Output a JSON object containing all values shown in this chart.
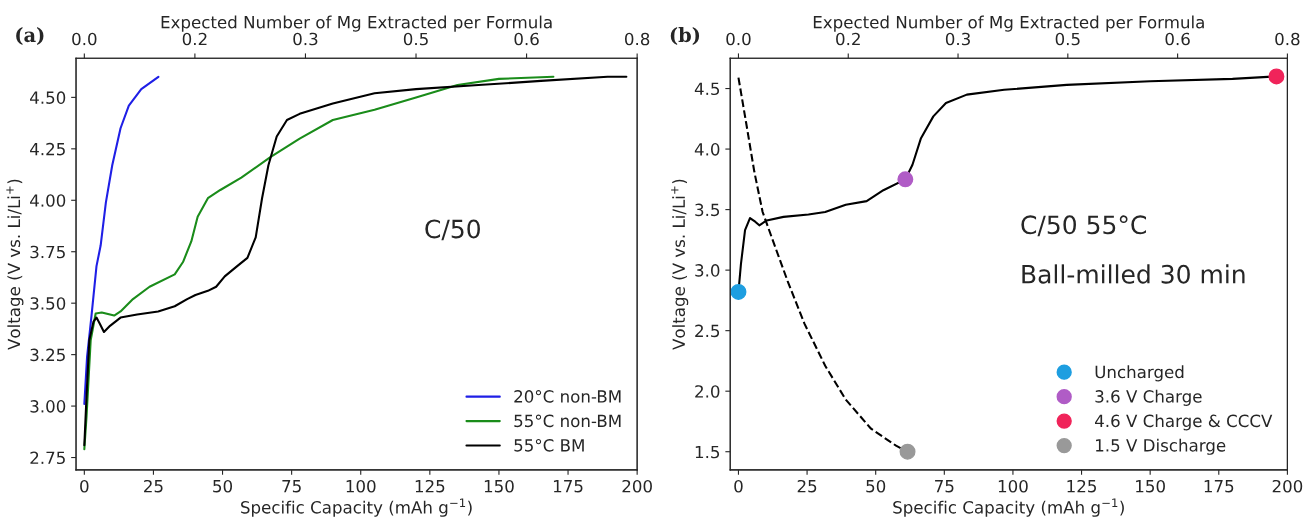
{
  "chart_data": [
    {
      "type": "line",
      "title": "(a)",
      "xlabel": "Specific Capacity (mAh g$^{−1}$)",
      "ylabel": "Voltage (V vs. Li/Li$^{+}$)",
      "x2label": "Expected Number of Mg Extracted per Formula",
      "xlim": [
        -3,
        200
      ],
      "xticks": [
        0,
        25,
        50,
        75,
        100,
        125,
        150,
        175,
        200
      ],
      "x2lim": [
        -0.012,
        0.8
      ],
      "x2ticks": [
        {
          "value": 0,
          "label": "0.0"
        },
        {
          "value": 0.16,
          "label": "0.2"
        },
        {
          "value": 0.32,
          "label": "0.3"
        },
        {
          "value": 0.48,
          "label": "0.5"
        },
        {
          "value": 0.64,
          "label": "0.6"
        },
        {
          "value": 0.8,
          "label": "0.8"
        }
      ],
      "ylim": [
        2.69,
        4.69
      ],
      "yticks": [
        {
          "value": 2.75,
          "label": "2.75"
        },
        {
          "value": 3.0,
          "label": "3.00"
        },
        {
          "value": 3.25,
          "label": "3.25"
        },
        {
          "value": 3.5,
          "label": "3.50"
        },
        {
          "value": 3.75,
          "label": "3.75"
        },
        {
          "value": 4.0,
          "label": "4.00"
        },
        {
          "value": 4.25,
          "label": "4.25"
        },
        {
          "value": 4.5,
          "label": "4.50"
        }
      ],
      "legend": "bottom right",
      "grid": false,
      "annotations": [
        "C/50"
      ],
      "series": [
        {
          "name": "20°C non-BM",
          "color": "#1f1fe6",
          "x": [
            0,
            1,
            2.6,
            4.4,
            5.9,
            7.8,
            10.1,
            13.1,
            16.1,
            20.6,
            26.8
          ],
          "values": [
            3.01,
            3.24,
            3.44,
            3.68,
            3.78,
            3.99,
            4.17,
            4.35,
            4.46,
            4.54,
            4.6
          ]
        },
        {
          "name": "55°C non-BM",
          "color": "#1a8c1a",
          "x": [
            0,
            0.8,
            2.3,
            4.1,
            6.3,
            10.8,
            13.1,
            17.6,
            23.6,
            32.7,
            35.7,
            38.7,
            41,
            44.7,
            49.2,
            56.8,
            67.3,
            77.9,
            89.9,
            105,
            120,
            135,
            150,
            169.7
          ],
          "values": [
            2.79,
            2.95,
            3.32,
            3.45,
            3.455,
            3.44,
            3.46,
            3.52,
            3.58,
            3.64,
            3.7,
            3.8,
            3.92,
            4.01,
            4.05,
            4.11,
            4.21,
            4.3,
            4.39,
            4.44,
            4.5,
            4.56,
            4.59,
            4.6
          ]
        },
        {
          "name": "55°C BM",
          "color": "#000000",
          "x": [
            0,
            0.8,
            1.8,
            3.3,
            4.4,
            5.6,
            7.1,
            9.3,
            13.1,
            19.1,
            26.7,
            32.7,
            37.2,
            40.2,
            44.7,
            47.7,
            50.8,
            55.3,
            59,
            62,
            64.3,
            66.6,
            69.6,
            73.3,
            77.9,
            89.9,
            105,
            120,
            142.6,
            165.2,
            189.3,
            196.1
          ],
          "values": [
            2.81,
            3.05,
            3.32,
            3.41,
            3.43,
            3.4,
            3.36,
            3.39,
            3.43,
            3.445,
            3.46,
            3.485,
            3.52,
            3.54,
            3.56,
            3.58,
            3.63,
            3.68,
            3.72,
            3.82,
            4.01,
            4.17,
            4.31,
            4.39,
            4.42,
            4.47,
            4.52,
            4.54,
            4.56,
            4.58,
            4.6,
            4.6
          ]
        }
      ]
    },
    {
      "type": "line",
      "title": "(b)",
      "xlabel": "Specific Capacity (mAh g$^{−1}$)",
      "ylabel": "Voltage (V vs. Li/Li$^{+}$)",
      "x2label": "Expected Number of Mg Extracted per Formula",
      "xlim": [
        -3,
        200
      ],
      "xticks": [
        0,
        25,
        50,
        75,
        100,
        125,
        150,
        175,
        200
      ],
      "x2lim": [
        -0.012,
        0.8
      ],
      "x2ticks": [
        {
          "value": 0,
          "label": "0.0"
        },
        {
          "value": 0.16,
          "label": "0.2"
        },
        {
          "value": 0.32,
          "label": "0.3"
        },
        {
          "value": 0.48,
          "label": "0.5"
        },
        {
          "value": 0.64,
          "label": "0.6"
        },
        {
          "value": 0.8,
          "label": "0.8"
        }
      ],
      "ylim": [
        1.35,
        4.75
      ],
      "yticks": [
        1.5,
        {
          "value": 2,
          "label": "2.0"
        },
        2.5,
        {
          "value": 3,
          "label": "3.0"
        },
        3.5,
        {
          "value": 4,
          "label": "4.0"
        },
        4.5
      ],
      "legend": "bottom right",
      "grid": false,
      "annotations": [
        "C/50 55°C",
        "Ball-milled 30 min"
      ],
      "series": [
        {
          "type": "line",
          "color": "#000000",
          "line_style": "solid",
          "x": [
            0,
            0.9,
            2.4,
            4.2,
            6.1,
            7.6,
            10.3,
            16.4,
            25.5,
            31.6,
            39.1,
            46.7,
            52.8,
            60.8,
            63.4,
            66.5,
            71,
            75.6,
            83.2,
            96.8,
            119.6,
            150,
            180,
            195.9
          ],
          "values": [
            2.82,
            3.05,
            3.33,
            3.43,
            3.4,
            3.37,
            3.41,
            3.44,
            3.46,
            3.48,
            3.54,
            3.57,
            3.66,
            3.75,
            3.87,
            4.09,
            4.27,
            4.38,
            4.45,
            4.49,
            4.53,
            4.56,
            4.58,
            4.6
          ]
        },
        {
          "type": "line",
          "color": "#000000",
          "line_style": "dashed",
          "x": [
            0,
            2.7,
            5.8,
            8.8,
            13.4,
            17.9,
            24,
            31.6,
            39.1,
            48.3,
            57.4,
            61.6
          ],
          "values": [
            4.59,
            4.23,
            3.81,
            3.48,
            3.19,
            2.91,
            2.56,
            2.21,
            1.93,
            1.69,
            1.55,
            1.5
          ]
        },
        {
          "type": "scatter",
          "name": "Uncharged",
          "color": "#1e9ee0",
          "marker": "circle",
          "x": [
            0
          ],
          "values": [
            2.82
          ]
        },
        {
          "type": "scatter",
          "name": "3.6 V Charge",
          "color": "#b05cc6",
          "marker": "circle",
          "x": [
            60.8
          ],
          "values": [
            3.75
          ]
        },
        {
          "type": "scatter",
          "name": "4.6 V Charge & CCCV",
          "color": "#f0245a",
          "marker": "circle",
          "x": [
            196
          ],
          "values": [
            4.6
          ]
        },
        {
          "type": "scatter",
          "name": "1.5 V Discharge",
          "color": "#999999",
          "marker": "circle",
          "x": [
            61.6
          ],
          "values": [
            1.5
          ]
        }
      ]
    }
  ]
}
